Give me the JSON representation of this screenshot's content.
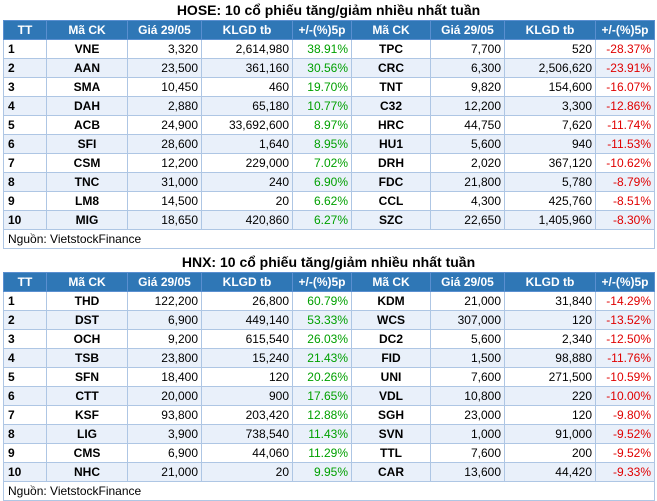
{
  "hose": {
    "title": "HOSE: 10 cổ phiếu tăng/giảm nhiều nhất tuần",
    "headers": [
      "TT",
      "Mã CK",
      "Giá 29/05",
      "KLGD tb",
      "+/-(%)5p",
      "Mã CK",
      "Giá 29/05",
      "KLGD tb",
      "+/-(%)5p"
    ],
    "rows": [
      {
        "tt": "1",
        "up_code": "VNE",
        "up_price": "3,320",
        "up_vol": "2,614,980",
        "up_pct": "38.91%",
        "dn_code": "TPC",
        "dn_price": "7,700",
        "dn_vol": "520",
        "dn_pct": "-28.37%"
      },
      {
        "tt": "2",
        "up_code": "AAN",
        "up_price": "23,500",
        "up_vol": "361,160",
        "up_pct": "30.56%",
        "dn_code": "CRC",
        "dn_price": "6,300",
        "dn_vol": "2,506,620",
        "dn_pct": "-23.91%"
      },
      {
        "tt": "3",
        "up_code": "SMA",
        "up_price": "10,450",
        "up_vol": "460",
        "up_pct": "19.70%",
        "dn_code": "TNT",
        "dn_price": "9,820",
        "dn_vol": "154,600",
        "dn_pct": "-16.07%"
      },
      {
        "tt": "4",
        "up_code": "DAH",
        "up_price": "2,880",
        "up_vol": "65,180",
        "up_pct": "10.77%",
        "dn_code": "C32",
        "dn_price": "12,200",
        "dn_vol": "3,300",
        "dn_pct": "-12.86%"
      },
      {
        "tt": "5",
        "up_code": "ACB",
        "up_price": "24,900",
        "up_vol": "33,692,600",
        "up_pct": "8.97%",
        "dn_code": "HRC",
        "dn_price": "44,750",
        "dn_vol": "7,620",
        "dn_pct": "-11.74%"
      },
      {
        "tt": "6",
        "up_code": "SFI",
        "up_price": "28,600",
        "up_vol": "1,640",
        "up_pct": "8.95%",
        "dn_code": "HU1",
        "dn_price": "5,600",
        "dn_vol": "940",
        "dn_pct": "-11.53%"
      },
      {
        "tt": "7",
        "up_code": "CSM",
        "up_price": "12,200",
        "up_vol": "229,000",
        "up_pct": "7.02%",
        "dn_code": "DRH",
        "dn_price": "2,020",
        "dn_vol": "367,120",
        "dn_pct": "-10.62%"
      },
      {
        "tt": "8",
        "up_code": "TNC",
        "up_price": "31,000",
        "up_vol": "240",
        "up_pct": "6.90%",
        "dn_code": "FDC",
        "dn_price": "21,800",
        "dn_vol": "5,780",
        "dn_pct": "-8.79%"
      },
      {
        "tt": "9",
        "up_code": "LM8",
        "up_price": "14,500",
        "up_vol": "20",
        "up_pct": "6.62%",
        "dn_code": "CCL",
        "dn_price": "4,300",
        "dn_vol": "425,760",
        "dn_pct": "-8.51%"
      },
      {
        "tt": "10",
        "up_code": "MIG",
        "up_price": "18,650",
        "up_vol": "420,860",
        "up_pct": "6.27%",
        "dn_code": "SZC",
        "dn_price": "22,650",
        "dn_vol": "1,405,960",
        "dn_pct": "-8.30%"
      }
    ],
    "source": "Nguồn: VietstockFinance"
  },
  "hnx": {
    "title": "HNX: 10 cổ phiếu tăng/giảm nhiều nhất tuần",
    "headers": [
      "TT",
      "Mã CK",
      "Giá 29/05",
      "KLGD tb",
      "+/-(%)5p",
      "Mã CK",
      "Giá 29/05",
      "KLGD tb",
      "+/-(%)5p"
    ],
    "rows": [
      {
        "tt": "1",
        "up_code": "THD",
        "up_price": "122,200",
        "up_vol": "26,800",
        "up_pct": "60.79%",
        "dn_code": "KDM",
        "dn_price": "21,000",
        "dn_vol": "31,840",
        "dn_pct": "-14.29%"
      },
      {
        "tt": "2",
        "up_code": "DST",
        "up_price": "6,900",
        "up_vol": "449,140",
        "up_pct": "53.33%",
        "dn_code": "WCS",
        "dn_price": "307,000",
        "dn_vol": "120",
        "dn_pct": "-13.52%"
      },
      {
        "tt": "3",
        "up_code": "OCH",
        "up_price": "9,200",
        "up_vol": "615,540",
        "up_pct": "26.03%",
        "dn_code": "DC2",
        "dn_price": "5,600",
        "dn_vol": "2,340",
        "dn_pct": "-12.50%"
      },
      {
        "tt": "4",
        "up_code": "TSB",
        "up_price": "23,800",
        "up_vol": "15,240",
        "up_pct": "21.43%",
        "dn_code": "FID",
        "dn_price": "1,500",
        "dn_vol": "98,880",
        "dn_pct": "-11.76%"
      },
      {
        "tt": "5",
        "up_code": "SFN",
        "up_price": "18,400",
        "up_vol": "120",
        "up_pct": "20.26%",
        "dn_code": "UNI",
        "dn_price": "7,600",
        "dn_vol": "271,500",
        "dn_pct": "-10.59%"
      },
      {
        "tt": "6",
        "up_code": "CTT",
        "up_price": "20,000",
        "up_vol": "900",
        "up_pct": "17.65%",
        "dn_code": "VDL",
        "dn_price": "10,800",
        "dn_vol": "220",
        "dn_pct": "-10.00%"
      },
      {
        "tt": "7",
        "up_code": "KSF",
        "up_price": "93,800",
        "up_vol": "203,420",
        "up_pct": "12.88%",
        "dn_code": "SGH",
        "dn_price": "23,000",
        "dn_vol": "120",
        "dn_pct": "-9.80%"
      },
      {
        "tt": "8",
        "up_code": "LIG",
        "up_price": "3,900",
        "up_vol": "738,540",
        "up_pct": "11.43%",
        "dn_code": "SVN",
        "dn_price": "1,000",
        "dn_vol": "91,000",
        "dn_pct": "-9.52%"
      },
      {
        "tt": "9",
        "up_code": "CMS",
        "up_price": "6,900",
        "up_vol": "44,060",
        "up_pct": "11.29%",
        "dn_code": "TTL",
        "dn_price": "7,600",
        "dn_vol": "200",
        "dn_pct": "-9.52%"
      },
      {
        "tt": "10",
        "up_code": "NHC",
        "up_price": "21,000",
        "up_vol": "20",
        "up_pct": "9.95%",
        "dn_code": "CAR",
        "dn_price": "13,600",
        "dn_vol": "44,420",
        "dn_pct": "-9.33%"
      }
    ],
    "source": "Nguồn: VietstockFinance"
  },
  "colors": {
    "header_bg": "#2f77b6",
    "gain": "#00a000",
    "loss": "#e00000",
    "stripe": "#e9f0fa"
  }
}
